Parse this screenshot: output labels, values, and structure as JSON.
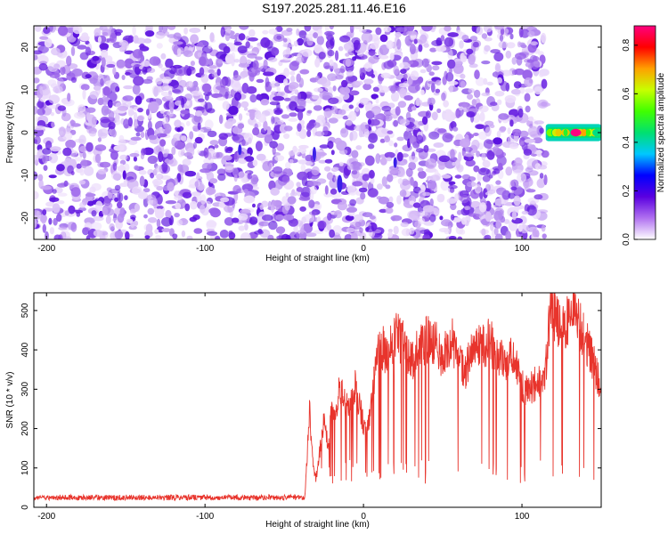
{
  "title": "S197.2025.281.11.46.E16",
  "chart_data": [
    {
      "type": "heatmap",
      "xlabel": "Height of straight line (km)",
      "ylabel": "Frequency (Hz)",
      "xlim": [
        -208,
        150
      ],
      "ylim": [
        -25,
        25
      ],
      "xticks": [
        -200,
        -100,
        0,
        100
      ],
      "yticks": [
        -20,
        -10,
        0,
        10,
        20
      ],
      "colorbar": {
        "label": "Normalized spectral amplitude",
        "range": [
          0,
          0.88
        ],
        "ticks": [
          "0.0",
          "0.2",
          "0.4",
          "0.6",
          "0.8"
        ],
        "colormap": [
          "#ffffff",
          "#b070f0",
          "#5a00e0",
          "#0000ff",
          "#00c8ff",
          "#00e070",
          "#40ff00",
          "#c8ff00",
          "#ffa000",
          "#ff0000",
          "#ff0080"
        ]
      },
      "noise_region_x": [
        -208,
        115
      ],
      "signal_band": {
        "x": [
          115,
          150
        ],
        "center_freq": 0,
        "half_width": 2,
        "peak_amplitude": 0.88
      }
    },
    {
      "type": "line",
      "xlabel": "Height of straight line (km)",
      "ylabel": "SNR (10 * v/v)",
      "xlim": [
        -208,
        150
      ],
      "ylim": [
        0,
        545
      ],
      "xticks": [
        -200,
        -100,
        0,
        100
      ],
      "yticks": [
        0,
        100,
        200,
        300,
        400,
        500
      ],
      "line_color": "#e8342c",
      "series": [
        {
          "x": [
            -208,
            -150,
            -100,
            -50,
            -37,
            -34,
            -32,
            -30,
            -25,
            -22,
            -20,
            -18,
            -15,
            -12,
            -10,
            -5,
            0,
            2,
            5,
            10,
            15,
            20,
            25,
            30,
            35,
            40,
            45,
            50,
            55,
            60,
            65,
            70,
            75,
            80,
            85,
            90,
            95,
            100,
            105,
            110,
            115,
            118,
            122,
            125,
            130,
            135,
            140,
            145,
            148,
            150
          ],
          "values": [
            20,
            22,
            20,
            20,
            25,
            250,
            120,
            70,
            220,
            150,
            260,
            240,
            300,
            270,
            250,
            310,
            210,
            180,
            270,
            420,
            390,
            440,
            420,
            370,
            400,
            430,
            420,
            370,
            430,
            380,
            350,
            420,
            410,
            420,
            380,
            370,
            380,
            310,
            300,
            320,
            350,
            520,
            480,
            440,
            490,
            480,
            430,
            370,
            330,
            280
          ]
        }
      ]
    }
  ]
}
